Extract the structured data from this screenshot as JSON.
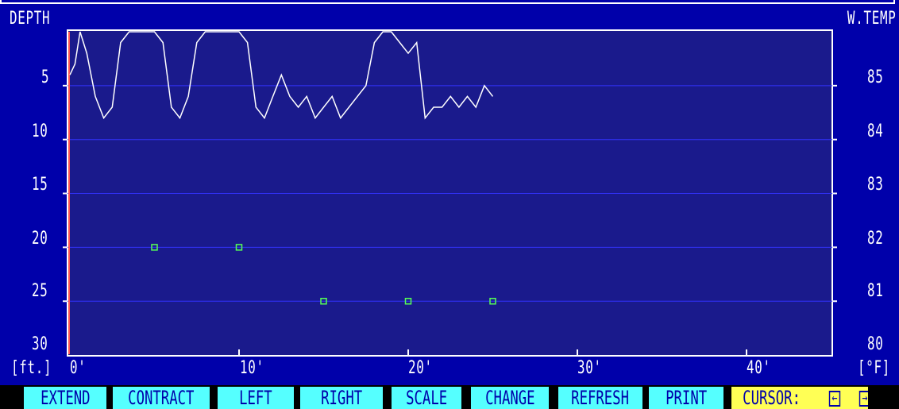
{
  "labels": {
    "depth": "DEPTH",
    "wtemp": "W.TEMP",
    "unit_left": "[ft.]",
    "unit_right": "[°F]"
  },
  "left_ticks": [
    "5",
    "10",
    "15",
    "20",
    "25",
    "30"
  ],
  "right_ticks": [
    "85",
    "84",
    "83",
    "82",
    "81",
    "80"
  ],
  "bottom_ticks": [
    "0'",
    "10'",
    "20'",
    "30'",
    "40'"
  ],
  "function_keys": {
    "extend": "EXTEND",
    "contract": "CONTRACT",
    "left": "LEFT",
    "right": "RIGHT",
    "scale": "SCALE",
    "change": "CHANGE",
    "refresh": "REFRESH",
    "print": "PRINT",
    "cursor": "CURSOR:",
    "cursor_left_glyph": "←",
    "cursor_right_glyph": "→"
  },
  "colors": {
    "background": "#0000aa",
    "plot_area": "#1a1a8c",
    "grid": "#3333ff",
    "trace": "#ffffff",
    "markers": "#55ff55",
    "keys": "#55ffff",
    "cursor_key": "#ffff55",
    "cursor_line": "#ff5555"
  },
  "chart_data": {
    "type": "line",
    "x_label_unit": "[ft.]",
    "xlim": [
      0,
      45
    ],
    "depth_ylim": [
      0,
      30
    ],
    "temp_ylim": [
      80,
      85.5
    ],
    "grid": true,
    "temperature_trace": {
      "x": [
        0,
        0.3,
        0.6,
        1,
        1.5,
        2,
        2.5,
        3,
        3.5,
        4,
        4.5,
        5,
        5.5,
        6,
        6.5,
        7,
        7.5,
        8,
        8.5,
        9,
        9.5,
        10,
        10.5,
        11,
        11.5,
        12,
        12.5,
        13,
        13.5,
        14,
        14.5,
        15,
        15.5,
        16,
        16.5,
        17,
        17.5,
        18,
        18.5,
        19,
        19.5,
        20,
        20.5,
        21,
        21.5,
        22,
        22.5,
        23,
        23.5,
        24,
        24.5,
        25
      ],
      "depth_ft": [
        4,
        3,
        0,
        2,
        6,
        8,
        7,
        1,
        0,
        0,
        0,
        0,
        1,
        7,
        8,
        6,
        1,
        0,
        0,
        0,
        0,
        0,
        1,
        7,
        8,
        6,
        4,
        6,
        7,
        6,
        8,
        7,
        6,
        8,
        7,
        6,
        5,
        1,
        0,
        0,
        1,
        2,
        1,
        8,
        7,
        7,
        6,
        7,
        6,
        7,
        5,
        6
      ]
    },
    "markers": {
      "x": [
        5,
        10,
        15,
        20,
        25
      ],
      "depth_ft": [
        20,
        20,
        25,
        25,
        25
      ]
    }
  }
}
